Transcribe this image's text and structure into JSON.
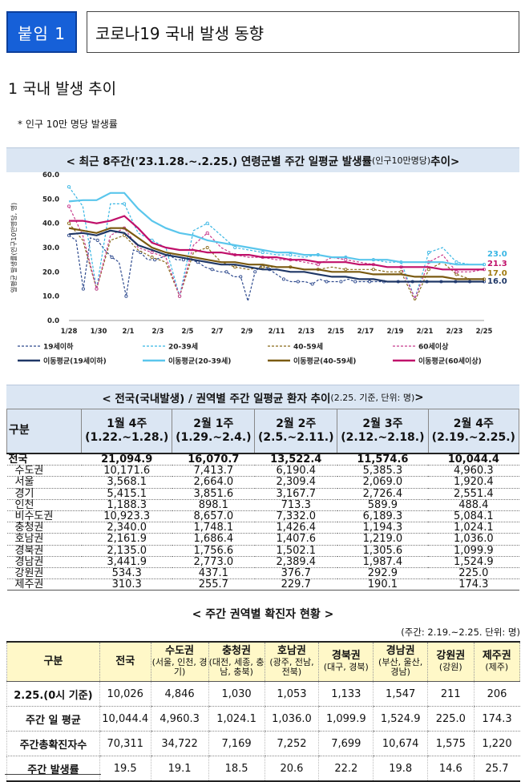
{
  "header": {
    "tag": "붙임 1",
    "title": "코로나19 국내 발생 동향"
  },
  "section1": {
    "heading": "1  국내 발생 추이",
    "note": "* 인구 10만 명당 발생률"
  },
  "chart_title": {
    "main": "< 최근 8주간('23.1.28.~.2.25.) 연령군별 주간 일평균 발생률",
    "sub": "(인구10만명당)",
    "tail": " 추이>"
  },
  "chart_data": {
    "type": "line",
    "ylabel": "일평균 발생률(인구10만명당, 명)",
    "ylim": [
      0,
      60
    ],
    "yticks": [
      "0.0",
      "10.0",
      "20.0",
      "30.0",
      "40.0",
      "50.0",
      "60.0"
    ],
    "xlabels": [
      "1/28",
      "1/30",
      "2/1",
      "2/3",
      "2/5",
      "2/7",
      "2/9",
      "2/11",
      "2/13",
      "2/15",
      "2/17",
      "2/19",
      "2/21",
      "2/23",
      "2/25"
    ],
    "series": [
      {
        "name": "19세이하",
        "color": "#2e4a8e",
        "dashed": true,
        "values": [
          35,
          33,
          13,
          34,
          33,
          29,
          26,
          24,
          10,
          29,
          28,
          25,
          25,
          26,
          27,
          25,
          25,
          25,
          24,
          22,
          21,
          20,
          20,
          18,
          18,
          8,
          20,
          23,
          21,
          19,
          17,
          16,
          16,
          16,
          15,
          17,
          16,
          16,
          16,
          17,
          16,
          16,
          16,
          16,
          16,
          16,
          16,
          16,
          16,
          16,
          16,
          16,
          16,
          16,
          16,
          16,
          16,
          16,
          16
        ]
      },
      {
        "name": "20-39세",
        "color": "#38b6e4",
        "dashed": true,
        "values": [
          55,
          47,
          13,
          48,
          48,
          36,
          33,
          30,
          10,
          37,
          40,
          35,
          30,
          29,
          28,
          27,
          27,
          26,
          27,
          26,
          26,
          25,
          25,
          24,
          24,
          9,
          28,
          30,
          24,
          23,
          23
        ]
      },
      {
        "name": "40-59세",
        "color": "#8a6a1a",
        "dashed": true,
        "values": [
          40,
          33,
          13,
          33,
          35,
          29,
          26,
          24,
          10,
          28,
          30,
          24,
          22,
          21,
          22,
          22,
          22,
          21,
          21,
          22,
          21,
          21,
          21,
          20,
          20,
          8,
          21,
          24,
          19,
          17,
          17
        ]
      },
      {
        "name": "60세이상",
        "color": "#c83c8e",
        "dashed": true,
        "values": [
          47,
          35,
          13,
          35,
          38,
          30,
          28,
          26,
          10,
          31,
          36,
          30,
          27,
          26,
          26,
          25,
          25,
          24,
          23,
          26,
          25,
          24,
          23,
          22,
          22,
          9,
          24,
          27,
          20,
          20,
          21
        ]
      },
      {
        "name": "이동평균(19세이하)",
        "color": "#1f3766",
        "dashed": false,
        "values": [
          35.5,
          36,
          35,
          37,
          36,
          31,
          29,
          27,
          26,
          25,
          24,
          23,
          23,
          22,
          21,
          21,
          20,
          20,
          19,
          18,
          18,
          17,
          17,
          16,
          16,
          16,
          16,
          16,
          16,
          16,
          16
        ]
      },
      {
        "name": "이동평균(20-39세)",
        "color": "#5ac6ec",
        "dashed": false,
        "values": [
          49,
          49.5,
          49.5,
          52.5,
          52.5,
          46,
          41,
          38,
          36,
          35,
          33,
          32,
          31,
          30,
          29,
          28,
          28,
          27,
          27,
          26,
          26,
          25,
          25,
          25,
          24,
          24,
          24,
          24,
          23,
          23,
          23
        ]
      },
      {
        "name": "이동평균(40-59세)",
        "color": "#7a5a10",
        "dashed": false,
        "values": [
          38,
          37,
          36,
          38,
          38,
          34,
          30,
          28,
          27,
          26,
          25,
          24,
          24,
          23,
          23,
          22,
          22,
          21,
          21,
          20,
          20,
          20,
          19,
          19,
          19,
          18,
          18,
          18,
          17,
          17,
          17
        ]
      },
      {
        "name": "이동평균(60세이상)",
        "color": "#c0106a",
        "dashed": false,
        "values": [
          41,
          41,
          40,
          41,
          43,
          38,
          32,
          30,
          29,
          29,
          28,
          28,
          27,
          27,
          26,
          26,
          25,
          25,
          24,
          24,
          24,
          23,
          23,
          22,
          22,
          22,
          22,
          21,
          21,
          21,
          21
        ]
      }
    ],
    "end_labels": [
      {
        "text": "23.0",
        "color": "#38b6e4",
        "value": 23.0
      },
      {
        "text": "21.3",
        "color": "#c0106a",
        "value": 21.3
      },
      {
        "text": "17.0",
        "color": "#a07a10",
        "value": 17.0
      },
      {
        "text": "16.0",
        "color": "#1f3766",
        "value": 16.0
      }
    ],
    "legend": [
      {
        "label": "19세이하",
        "color": "#2e4a8e",
        "dashed": true
      },
      {
        "label": "20-39세",
        "color": "#38b6e4",
        "dashed": true
      },
      {
        "label": "40-59세",
        "color": "#8a6a1a",
        "dashed": true
      },
      {
        "label": "60세이상",
        "color": "#c83c8e",
        "dashed": true
      },
      {
        "label": "이동평균(19세이하)",
        "color": "#1f3766",
        "dashed": false
      },
      {
        "label": "이동평균(20-39세)",
        "color": "#5ac6ec",
        "dashed": false
      },
      {
        "label": "이동평균(40-59세)",
        "color": "#7a5a10",
        "dashed": false
      },
      {
        "label": "이동평균(60세이상)",
        "color": "#c0106a",
        "dashed": false
      }
    ]
  },
  "table1": {
    "title": "< 전국(국내발생) / 권역별 주간 일평균 환자 추이",
    "title_sub": " (2.25. 기준, 단위: 명)",
    "title_tail": " >",
    "header": [
      "구분",
      "1월 4주\n(1.22.~1.28.)",
      "2월 1주\n(1.29.~2.4.)",
      "2월 2주\n(2.5.~2.11.)",
      "2월 3주\n(2.12.~2.18.)",
      "2월 4주\n(2.19.~2.25.)"
    ],
    "rows": [
      {
        "label": "전국",
        "bold": true,
        "values": [
          "21,094.9",
          "16,070.7",
          "13,522.4",
          "11,574.6",
          "10,044.4"
        ]
      },
      {
        "label": "수도권",
        "bold": false,
        "values": [
          "10,171.6",
          "7,413.7",
          "6,190.4",
          "5,385.3",
          "4,960.3"
        ]
      },
      {
        "label": "서울",
        "bold": false,
        "values": [
          "3,568.1",
          "2,664.0",
          "2,309.4",
          "2,069.0",
          "1,920.4"
        ]
      },
      {
        "label": "경기",
        "bold": false,
        "values": [
          "5,415.1",
          "3,851.6",
          "3,167.7",
          "2,726.4",
          "2,551.4"
        ]
      },
      {
        "label": "인천",
        "bold": false,
        "values": [
          "1,188.3",
          "898.1",
          "713.3",
          "589.9",
          "488.4"
        ]
      },
      {
        "label": "비수도권",
        "bold": false,
        "values": [
          "10,923.3",
          "8,657.0",
          "7,332.0",
          "6,189.3",
          "5,084.1"
        ]
      },
      {
        "label": "충청권",
        "bold": false,
        "values": [
          "2,340.0",
          "1,748.1",
          "1,426.4",
          "1,194.3",
          "1,024.1"
        ]
      },
      {
        "label": "호남권",
        "bold": false,
        "values": [
          "2,161.9",
          "1,686.4",
          "1,407.6",
          "1,219.0",
          "1,036.0"
        ]
      },
      {
        "label": "경북권",
        "bold": false,
        "values": [
          "2,135.0",
          "1,756.6",
          "1,502.1",
          "1,305.6",
          "1,099.9"
        ]
      },
      {
        "label": "경남권",
        "bold": false,
        "values": [
          "3,441.9",
          "2,773.0",
          "2,389.4",
          "1,987.4",
          "1,524.9"
        ]
      },
      {
        "label": "강원권",
        "bold": false,
        "values": [
          "534.3",
          "437.1",
          "376.7",
          "292.9",
          "225.0"
        ]
      },
      {
        "label": "제주권",
        "bold": false,
        "values": [
          "310.3",
          "255.7",
          "229.7",
          "190.1",
          "174.3"
        ]
      }
    ]
  },
  "table2": {
    "title": "< 주간 권역별 확진자 현황 >",
    "unit": "(주간: 2.19.~2.25. 단위: 명)",
    "header": [
      {
        "name": "구분",
        "sub": ""
      },
      {
        "name": "전국",
        "sub": ""
      },
      {
        "name": "수도권",
        "sub": "(서울, 인천, 경기)"
      },
      {
        "name": "충청권",
        "sub": "(대전, 세종, 충남, 충북)"
      },
      {
        "name": "호남권",
        "sub": "(광주, 전남, 전북)"
      },
      {
        "name": "경북권",
        "sub": "(대구, 경북)"
      },
      {
        "name": "경남권",
        "sub": "(부산, 울산, 경남)"
      },
      {
        "name": "강원권",
        "sub": "(강원)"
      },
      {
        "name": "제주권",
        "sub": "(제주)"
      }
    ],
    "rows": [
      {
        "label": "2.25.(0시 기준)",
        "values": [
          "10,026",
          "4,846",
          "1,030",
          "1,053",
          "1,133",
          "1,547",
          "211",
          "206"
        ]
      },
      {
        "label": "주간 일 평균",
        "values": [
          "10,044.4",
          "4,960.3",
          "1,024.1",
          "1,036.0",
          "1,099.9",
          "1,524.9",
          "225.0",
          "174.3"
        ]
      },
      {
        "label": "주간총확진자수",
        "values": [
          "70,311",
          "34,722",
          "7,169",
          "7,252",
          "7,699",
          "10,674",
          "1,575",
          "1,220"
        ]
      },
      {
        "label": "주간 발생률",
        "values": [
          "19.5",
          "19.1",
          "18.5",
          "20.6",
          "22.2",
          "19.8",
          "14.6",
          "25.7"
        ]
      }
    ]
  }
}
